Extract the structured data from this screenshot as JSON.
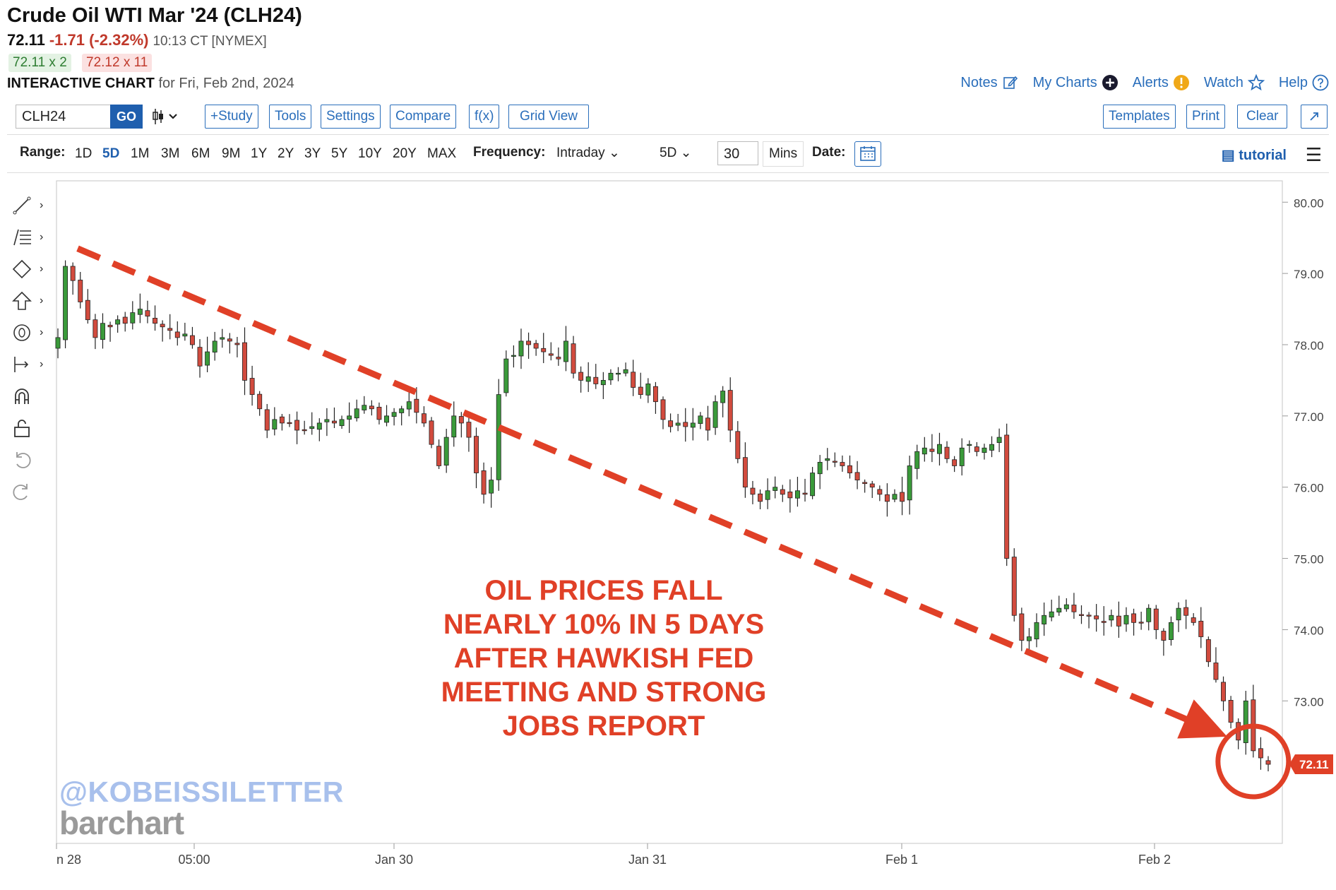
{
  "header": {
    "title": "Crude Oil WTI Mar '24 (CLH24)",
    "last": "72.11",
    "change": "-1.71 (-2.32%)",
    "time": "10:13 CT [NYMEX]",
    "bid": "72.11 x 2",
    "ask": "72.12 x 11",
    "chart_label": "INTERACTIVE CHART",
    "chart_date": "for Fri, Feb 2nd, 2024"
  },
  "toplinks": [
    "Notes",
    "My Charts",
    "Alerts",
    "Watch",
    "Help"
  ],
  "toolbar": {
    "symbol": "CLH24",
    "go": "GO",
    "buttons": [
      "+Study",
      "Tools",
      "Settings",
      "Compare",
      "f(x)",
      "Grid View"
    ],
    "right_buttons": [
      "Templates",
      "Print",
      "Clear"
    ]
  },
  "rangebar": {
    "range_label": "Range:",
    "ranges": [
      "1D",
      "5D",
      "1M",
      "3M",
      "6M",
      "9M",
      "1Y",
      "2Y",
      "3Y",
      "5Y",
      "10Y",
      "20Y",
      "MAX"
    ],
    "active_range": "5D",
    "frequency_label": "Frequency:",
    "frequency": "Intraday",
    "period": "5D",
    "interval": "30",
    "interval_unit": "Mins",
    "date_label": "Date:",
    "tutorial": "tutorial"
  },
  "overlay": {
    "annotation_lines": [
      "OIL PRICES FALL",
      "NEARLY 10% IN 5 DAYS",
      "AFTER HAWKISH FED",
      "MEETING AND STRONG",
      "JOBS REPORT"
    ],
    "watermark": "@KOBEISSILETTER",
    "brand": "barchart"
  },
  "colors": {
    "up": "#3a9a3a",
    "down": "#d24b3e",
    "annotation": "#e04027",
    "last_price_tag": "#e04027"
  },
  "chart_data": {
    "type": "candlestick",
    "symbol": "CLH24",
    "interval": "30 Mins",
    "x_ticks": [
      "n 28",
      "05:00",
      "Jan 30",
      "Jan 31",
      "Feb 1",
      "Feb 2"
    ],
    "ylim": [
      71.0,
      80.3
    ],
    "y_ticks": [
      80.0,
      79.0,
      78.0,
      77.0,
      76.0,
      75.0,
      74.0,
      73.0
    ],
    "last_price": 72.11,
    "trend_line": {
      "from": 79.35,
      "to": 72.7
    },
    "close": [
      78.1,
      79.1,
      78.9,
      78.6,
      78.35,
      78.1,
      78.3,
      78.25,
      78.35,
      78.3,
      78.45,
      78.5,
      78.4,
      78.3,
      78.25,
      78.2,
      78.1,
      78.15,
      78.0,
      77.7,
      77.9,
      78.05,
      78.1,
      78.05,
      78.0,
      77.5,
      77.3,
      77.1,
      76.8,
      76.95,
      76.9,
      76.9,
      76.8,
      76.8,
      76.85,
      76.9,
      76.95,
      76.9,
      76.95,
      77.0,
      77.1,
      77.15,
      77.1,
      76.95,
      77.0,
      77.05,
      77.1,
      77.2,
      77.05,
      76.9,
      76.6,
      76.3,
      76.7,
      77.0,
      76.9,
      76.7,
      76.2,
      75.9,
      76.1,
      77.3,
      77.8,
      77.85,
      78.05,
      78.0,
      77.95,
      77.9,
      77.85,
      77.8,
      78.05,
      77.6,
      77.5,
      77.55,
      77.45,
      77.5,
      77.6,
      77.6,
      77.65,
      77.4,
      77.3,
      77.45,
      77.2,
      76.95,
      76.85,
      76.9,
      76.85,
      76.9,
      77.0,
      76.8,
      77.2,
      77.35,
      76.8,
      76.4,
      76.0,
      75.9,
      75.8,
      75.95,
      76.0,
      75.9,
      75.85,
      75.95,
      75.9,
      76.2,
      76.35,
      76.4,
      76.35,
      76.3,
      76.2,
      76.1,
      76.05,
      76.0,
      75.9,
      75.8,
      75.9,
      75.8,
      76.3,
      76.5,
      76.55,
      76.5,
      76.6,
      76.4,
      76.3,
      76.55,
      76.6,
      76.5,
      76.55,
      76.6,
      76.7,
      75.0,
      74.2,
      73.85,
      73.9,
      74.1,
      74.2,
      74.25,
      74.3,
      74.35,
      74.25,
      74.2,
      74.2,
      74.15,
      74.1,
      74.2,
      74.05,
      74.2,
      74.1,
      74.1,
      74.3,
      74.0,
      73.85,
      74.1,
      74.3,
      74.2,
      74.1,
      73.9,
      73.55,
      73.3,
      73.0,
      72.7,
      72.45,
      73.0,
      72.3,
      72.2,
      72.11
    ],
    "label_note": "close prices estimated from gridlines, 30-minute candles over 5 trading days"
  }
}
